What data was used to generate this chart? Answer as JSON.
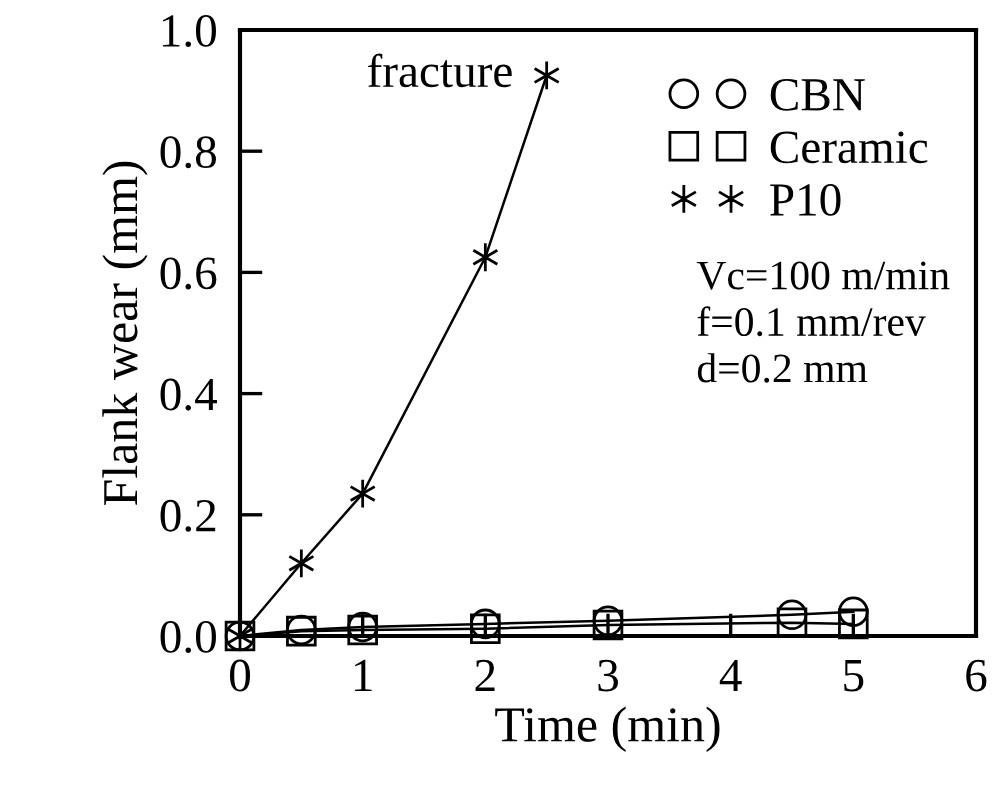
{
  "chart_data": {
    "type": "line",
    "xlabel": "Time (min)",
    "ylabel": "Flank wear (mm)",
    "xlim": [
      0,
      6
    ],
    "xticks": [
      0,
      1,
      2,
      3,
      4,
      5,
      6
    ],
    "ylim": [
      0,
      1.0
    ],
    "yticks": [
      {
        "value": 0,
        "label": "0.0"
      },
      {
        "value": 0.2,
        "label": "0.2"
      },
      {
        "value": 0.4,
        "label": "0.4"
      },
      {
        "value": 0.6,
        "label": "0.6"
      },
      {
        "value": 0.8,
        "label": "0.8"
      },
      {
        "value": 1.0,
        "label": "1.0"
      }
    ],
    "series": [
      {
        "name": "CBN",
        "color": "#000000",
        "marker": "circle",
        "x": [
          0,
          0.5,
          1,
          2,
          3,
          4.5,
          5
        ],
        "values": [
          0,
          0.01,
          0.015,
          0.02,
          0.025,
          0.035,
          0.04
        ]
      },
      {
        "name": "Ceramic",
        "color": "#000000",
        "marker": "square",
        "x": [
          0,
          0.5,
          1,
          2,
          3,
          4.5,
          5
        ],
        "values": [
          0,
          0.008,
          0.01,
          0.012,
          0.018,
          0.022,
          0.02
        ]
      },
      {
        "name": "P10",
        "color": "#000000",
        "marker": "cross",
        "x": [
          0,
          0.5,
          1,
          2,
          2.5
        ],
        "values": [
          0,
          0.12,
          0.235,
          0.625,
          0.925
        ]
      }
    ],
    "legend": "top right",
    "grid": false,
    "line_style": "solid",
    "annotations": [
      {
        "text": "fracture",
        "x": 2.5,
        "y": 0.925
      },
      "Vc=100 m/min\nf=0.1 mm/rev\nd=0.2 mm"
    ]
  }
}
